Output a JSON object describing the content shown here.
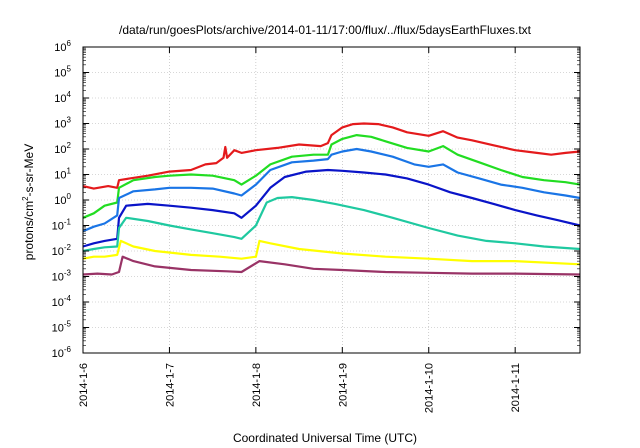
{
  "chart_data": {
    "type": "line",
    "title": "/data/run/goesPlots/archive/2014-01-11/17:00/flux/../flux/5daysEarthFluxes.txt",
    "xlabel": "Coordinated Universal Time (UTC)",
    "ylabel": "protons/cm2-s-sr-MeV",
    "ylabel_parts": {
      "pre": "protons/cm",
      "sup": "2",
      "post": "-s-sr-MeV"
    },
    "yscale": "log",
    "ylim": [
      1e-06,
      1000000.0
    ],
    "yticks": [
      {
        "base": "10",
        "exp": "-6",
        "value": 1e-06
      },
      {
        "base": "10",
        "exp": "-5",
        "value": 1e-05
      },
      {
        "base": "10",
        "exp": "-4",
        "value": 0.0001
      },
      {
        "base": "10",
        "exp": "-3",
        "value": 0.001
      },
      {
        "base": "10",
        "exp": "-2",
        "value": 0.01
      },
      {
        "base": "10",
        "exp": "-1",
        "value": 0.1
      },
      {
        "base": "10",
        "exp": "0",
        "value": 1
      },
      {
        "base": "10",
        "exp": "1",
        "value": 10
      },
      {
        "base": "10",
        "exp": "2",
        "value": 100
      },
      {
        "base": "10",
        "exp": "3",
        "value": 1000
      },
      {
        "base": "10",
        "exp": "4",
        "value": 10000
      },
      {
        "base": "10",
        "exp": "5",
        "value": 100000
      },
      {
        "base": "10",
        "exp": "6",
        "value": 1000000
      }
    ],
    "xrange": [
      "2014-01-06",
      "2014-01-11T18:00"
    ],
    "xticks": [
      "2014-1-6",
      "2014-1-7",
      "2014-1-8",
      "2014-1-9",
      "2014-1-10",
      "2014-1-11"
    ],
    "grid": true,
    "series": [
      {
        "color": "#e41a1c",
        "points": [
          [
            "2014-01-06T00:00",
            3.5
          ],
          [
            "2014-01-06T03:00",
            2.8
          ],
          [
            "2014-01-06T07:00",
            3.5
          ],
          [
            "2014-01-06T09:30",
            3.0
          ],
          [
            "2014-01-06T10:00",
            6.0
          ],
          [
            "2014-01-06T13:00",
            7.0
          ],
          [
            "2014-01-06T18:00",
            9.0
          ],
          [
            "2014-01-07T00:00",
            13
          ],
          [
            "2014-01-07T06:00",
            15
          ],
          [
            "2014-01-07T10:00",
            25
          ],
          [
            "2014-01-07T13:00",
            28
          ],
          [
            "2014-01-07T15:00",
            45
          ],
          [
            "2014-01-07T15:30",
            120
          ],
          [
            "2014-01-07T16:00",
            45
          ],
          [
            "2014-01-07T18:00",
            90
          ],
          [
            "2014-01-07T20:00",
            70
          ],
          [
            "2014-01-08T00:00",
            90
          ],
          [
            "2014-01-08T06:00",
            110
          ],
          [
            "2014-01-08T12:00",
            150
          ],
          [
            "2014-01-08T18:00",
            130
          ],
          [
            "2014-01-08T20:00",
            170
          ],
          [
            "2014-01-08T21:00",
            350
          ],
          [
            "2014-01-09T00:00",
            700
          ],
          [
            "2014-01-09T03:00",
            950
          ],
          [
            "2014-01-09T06:00",
            1000
          ],
          [
            "2014-01-09T10:00",
            950
          ],
          [
            "2014-01-09T14:00",
            700
          ],
          [
            "2014-01-09T18:00",
            450
          ],
          [
            "2014-01-10T00:00",
            330
          ],
          [
            "2014-01-10T04:00",
            500
          ],
          [
            "2014-01-10T08:00",
            280
          ],
          [
            "2014-01-10T12:00",
            220
          ],
          [
            "2014-01-10T18:00",
            140
          ],
          [
            "2014-01-11T00:00",
            90
          ],
          [
            "2014-01-11T06:00",
            70
          ],
          [
            "2014-01-11T10:00",
            60
          ],
          [
            "2014-01-11T14:00",
            70
          ],
          [
            "2014-01-11T18:00",
            80
          ]
        ]
      },
      {
        "color": "#22dd22",
        "points": [
          [
            "2014-01-06T00:00",
            0.2
          ],
          [
            "2014-01-06T03:00",
            0.3
          ],
          [
            "2014-01-06T06:00",
            0.6
          ],
          [
            "2014-01-06T09:30",
            0.8
          ],
          [
            "2014-01-06T10:00",
            3.0
          ],
          [
            "2014-01-06T14:00",
            6.0
          ],
          [
            "2014-01-06T20:00",
            8.0
          ],
          [
            "2014-01-07T00:00",
            9.0
          ],
          [
            "2014-01-07T06:00",
            10
          ],
          [
            "2014-01-07T12:00",
            9.0
          ],
          [
            "2014-01-07T18:00",
            6.0
          ],
          [
            "2014-01-07T20:00",
            4.0
          ],
          [
            "2014-01-08T00:00",
            9.0
          ],
          [
            "2014-01-08T04:00",
            25
          ],
          [
            "2014-01-08T10:00",
            50
          ],
          [
            "2014-01-08T16:00",
            60
          ],
          [
            "2014-01-08T20:00",
            60
          ],
          [
            "2014-01-08T21:00",
            150
          ],
          [
            "2014-01-09T00:00",
            250
          ],
          [
            "2014-01-09T04:00",
            350
          ],
          [
            "2014-01-09T08:00",
            300
          ],
          [
            "2014-01-09T12:00",
            200
          ],
          [
            "2014-01-09T18:00",
            110
          ],
          [
            "2014-01-10T00:00",
            80
          ],
          [
            "2014-01-10T04:00",
            130
          ],
          [
            "2014-01-10T08:00",
            60
          ],
          [
            "2014-01-10T14:00",
            30
          ],
          [
            "2014-01-10T20:00",
            15
          ],
          [
            "2014-01-11T02:00",
            8
          ],
          [
            "2014-01-11T08:00",
            6
          ],
          [
            "2014-01-11T14:00",
            5
          ],
          [
            "2014-01-11T18:00",
            4
          ]
        ]
      },
      {
        "color": "#1a75e6",
        "points": [
          [
            "2014-01-06T00:00",
            0.06
          ],
          [
            "2014-01-06T03:00",
            0.09
          ],
          [
            "2014-01-06T06:00",
            0.12
          ],
          [
            "2014-01-06T09:30",
            0.25
          ],
          [
            "2014-01-06T10:00",
            1.2
          ],
          [
            "2014-01-06T14:00",
            2.2
          ],
          [
            "2014-01-06T20:00",
            2.6
          ],
          [
            "2014-01-07T00:00",
            3.0
          ],
          [
            "2014-01-07T06:00",
            3.0
          ],
          [
            "2014-01-07T12:00",
            2.8
          ],
          [
            "2014-01-07T18:00",
            1.8
          ],
          [
            "2014-01-07T20:00",
            1.5
          ],
          [
            "2014-01-08T00:00",
            4.0
          ],
          [
            "2014-01-08T04:00",
            15
          ],
          [
            "2014-01-08T10:00",
            30
          ],
          [
            "2014-01-08T16:00",
            35
          ],
          [
            "2014-01-08T20:00",
            40
          ],
          [
            "2014-01-08T21:00",
            60
          ],
          [
            "2014-01-09T00:00",
            80
          ],
          [
            "2014-01-09T04:00",
            100
          ],
          [
            "2014-01-09T08:00",
            80
          ],
          [
            "2014-01-09T14:00",
            50
          ],
          [
            "2014-01-09T20:00",
            25
          ],
          [
            "2014-01-10T00:00",
            20
          ],
          [
            "2014-01-10T04:00",
            25
          ],
          [
            "2014-01-10T08:00",
            12
          ],
          [
            "2014-01-10T14:00",
            7
          ],
          [
            "2014-01-10T20:00",
            4
          ],
          [
            "2014-01-11T02:00",
            3
          ],
          [
            "2014-01-11T08:00",
            2
          ],
          [
            "2014-01-11T14:00",
            1.5
          ],
          [
            "2014-01-11T18:00",
            1.2
          ]
        ]
      },
      {
        "color": "#0a14c8",
        "points": [
          [
            "2014-01-06T00:00",
            0.015
          ],
          [
            "2014-01-06T03:00",
            0.02
          ],
          [
            "2014-01-06T06:00",
            0.025
          ],
          [
            "2014-01-06T09:30",
            0.03
          ],
          [
            "2014-01-06T10:00",
            0.2
          ],
          [
            "2014-01-06T12:00",
            0.6
          ],
          [
            "2014-01-06T18:00",
            0.7
          ],
          [
            "2014-01-07T00:00",
            0.6
          ],
          [
            "2014-01-07T06:00",
            0.5
          ],
          [
            "2014-01-07T12:00",
            0.4
          ],
          [
            "2014-01-07T18:00",
            0.3
          ],
          [
            "2014-01-07T20:00",
            0.2
          ],
          [
            "2014-01-08T00:00",
            0.6
          ],
          [
            "2014-01-08T04:00",
            3
          ],
          [
            "2014-01-08T08:00",
            8
          ],
          [
            "2014-01-08T14:00",
            13
          ],
          [
            "2014-01-08T20:00",
            15
          ],
          [
            "2014-01-09T00:00",
            14
          ],
          [
            "2014-01-09T06:00",
            12
          ],
          [
            "2014-01-09T12:00",
            10
          ],
          [
            "2014-01-09T18:00",
            7
          ],
          [
            "2014-01-10T00:00",
            4
          ],
          [
            "2014-01-10T06:00",
            2
          ],
          [
            "2014-01-10T12:00",
            1.2
          ],
          [
            "2014-01-10T18:00",
            0.7
          ],
          [
            "2014-01-11T00:00",
            0.4
          ],
          [
            "2014-01-11T06:00",
            0.25
          ],
          [
            "2014-01-11T12:00",
            0.16
          ],
          [
            "2014-01-11T18:00",
            0.1
          ]
        ]
      },
      {
        "color": "#1fc9a0",
        "points": [
          [
            "2014-01-06T00:00",
            0.01
          ],
          [
            "2014-01-06T03:00",
            0.012
          ],
          [
            "2014-01-06T06:00",
            0.014
          ],
          [
            "2014-01-06T09:30",
            0.015
          ],
          [
            "2014-01-06T10:00",
            0.08
          ],
          [
            "2014-01-06T12:00",
            0.2
          ],
          [
            "2014-01-06T18:00",
            0.15
          ],
          [
            "2014-01-07T00:00",
            0.1
          ],
          [
            "2014-01-07T06:00",
            0.07
          ],
          [
            "2014-01-07T12:00",
            0.05
          ],
          [
            "2014-01-07T18:00",
            0.035
          ],
          [
            "2014-01-07T20:00",
            0.03
          ],
          [
            "2014-01-08T00:00",
            0.1
          ],
          [
            "2014-01-08T03:00",
            0.8
          ],
          [
            "2014-01-08T06:00",
            1.2
          ],
          [
            "2014-01-08T10:00",
            1.3
          ],
          [
            "2014-01-08T16:00",
            1.0
          ],
          [
            "2014-01-08T22:00",
            0.7
          ],
          [
            "2014-01-09T06:00",
            0.4
          ],
          [
            "2014-01-09T14:00",
            0.2
          ],
          [
            "2014-01-10T00:00",
            0.08
          ],
          [
            "2014-01-10T08:00",
            0.04
          ],
          [
            "2014-01-10T16:00",
            0.025
          ],
          [
            "2014-01-11T00:00",
            0.02
          ],
          [
            "2014-01-11T08:00",
            0.015
          ],
          [
            "2014-01-11T18:00",
            0.012
          ]
        ]
      },
      {
        "color": "#ffff00",
        "points": [
          [
            "2014-01-06T00:00",
            0.005
          ],
          [
            "2014-01-06T03:00",
            0.006
          ],
          [
            "2014-01-06T06:00",
            0.006
          ],
          [
            "2014-01-06T09:30",
            0.007
          ],
          [
            "2014-01-06T10:30",
            0.025
          ],
          [
            "2014-01-06T14:00",
            0.015
          ],
          [
            "2014-01-06T20:00",
            0.01
          ],
          [
            "2014-01-07T06:00",
            0.007
          ],
          [
            "2014-01-07T14:00",
            0.006
          ],
          [
            "2014-01-07T20:00",
            0.005
          ],
          [
            "2014-01-08T00:00",
            0.006
          ],
          [
            "2014-01-08T01:00",
            0.025
          ],
          [
            "2014-01-08T04:00",
            0.02
          ],
          [
            "2014-01-08T12:00",
            0.012
          ],
          [
            "2014-01-09T00:00",
            0.008
          ],
          [
            "2014-01-09T12:00",
            0.006
          ],
          [
            "2014-01-10T00:00",
            0.005
          ],
          [
            "2014-01-10T12:00",
            0.004
          ],
          [
            "2014-01-11T00:00",
            0.004
          ],
          [
            "2014-01-11T18:00",
            0.003
          ]
        ]
      },
      {
        "color": "#993366",
        "points": [
          [
            "2014-01-06T00:00",
            0.0012
          ],
          [
            "2014-01-06T04:00",
            0.0013
          ],
          [
            "2014-01-06T08:00",
            0.0012
          ],
          [
            "2014-01-06T10:00",
            0.0015
          ],
          [
            "2014-01-06T11:00",
            0.006
          ],
          [
            "2014-01-06T14:00",
            0.004
          ],
          [
            "2014-01-06T20:00",
            0.0025
          ],
          [
            "2014-01-07T06:00",
            0.0018
          ],
          [
            "2014-01-07T16:00",
            0.0016
          ],
          [
            "2014-01-07T20:00",
            0.0015
          ],
          [
            "2014-01-08T01:00",
            0.004
          ],
          [
            "2014-01-08T08:00",
            0.003
          ],
          [
            "2014-01-08T16:00",
            0.002
          ],
          [
            "2014-01-09T00:00",
            0.0018
          ],
          [
            "2014-01-09T12:00",
            0.0015
          ],
          [
            "2014-01-10T00:00",
            0.0014
          ],
          [
            "2014-01-10T12:00",
            0.0013
          ],
          [
            "2014-01-11T00:00",
            0.0013
          ],
          [
            "2014-01-11T18:00",
            0.0012
          ]
        ]
      }
    ]
  }
}
